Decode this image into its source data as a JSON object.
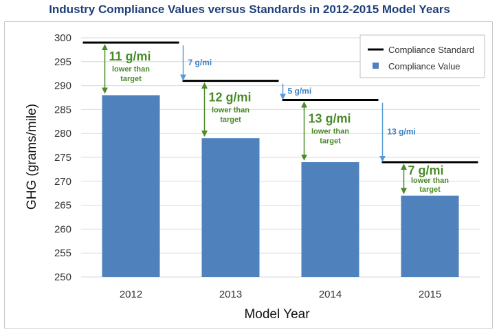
{
  "chart_data": {
    "type": "bar",
    "title": "Industry Compliance Values versus Standards in 2012-2015 Model Years",
    "xlabel": "Model Year",
    "ylabel": "GHG (grams/mile)",
    "ylim": [
      250,
      300
    ],
    "ytick_step": 5,
    "categories": [
      "2012",
      "2013",
      "2014",
      "2015"
    ],
    "series": [
      {
        "name": "Compliance Value",
        "kind": "bar",
        "color": "#4f81bd",
        "values": [
          288,
          279,
          274,
          267
        ]
      },
      {
        "name": "Compliance Standard",
        "kind": "line",
        "color": "#000000",
        "values": [
          299,
          291,
          287,
          274
        ]
      }
    ],
    "legend": {
      "position": "top-right",
      "items": [
        {
          "label": "Compliance Standard",
          "marker": "line",
          "color": "#000000"
        },
        {
          "label": "Compliance Value",
          "marker": "square",
          "color": "#4f81bd"
        }
      ]
    },
    "gap_annotations": [
      {
        "value": "11 g/mi",
        "note_line1": "lower than",
        "note_line2": "target"
      },
      {
        "value": "12 g/mi",
        "note_line1": "lower than",
        "note_line2": "target"
      },
      {
        "value": "13 g/mi",
        "note_line1": "lower than",
        "note_line2": "target"
      },
      {
        "value": "7 g/mi",
        "note_line1": "lower than",
        "note_line2": "target"
      }
    ],
    "drop_annotations": [
      {
        "label": "7 g/mi",
        "from": 299,
        "to": 291
      },
      {
        "label": "5 g/mi",
        "from": 291,
        "to": 287
      },
      {
        "label": "13 g/mi",
        "from": 287,
        "to": 274
      }
    ],
    "grid": true,
    "colors": {
      "gap_arrow": "#4a8a2a",
      "drop_arrow": "#5b9bd5",
      "grid": "#d9d9d9"
    }
  }
}
